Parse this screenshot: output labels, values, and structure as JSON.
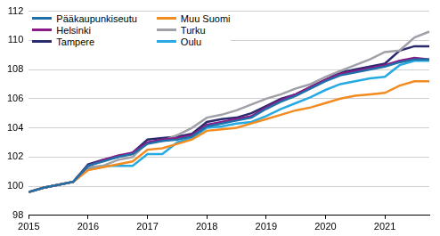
{
  "chart_data": {
    "type": "line",
    "categories": [
      "2015",
      null,
      null,
      null,
      "2016",
      null,
      null,
      null,
      "2017",
      null,
      null,
      null,
      "2018",
      null,
      null,
      null,
      "2019",
      null,
      null,
      null,
      "2020",
      null,
      null,
      null,
      "2021",
      null,
      null,
      null
    ],
    "series": [
      {
        "name": "Pääkaupunkiseutu",
        "color": "#1f6fa8",
        "values": [
          99.6,
          99.9,
          100.1,
          100.3,
          101.4,
          101.7,
          102.0,
          102.2,
          102.9,
          103.1,
          103.2,
          103.4,
          104.1,
          104.3,
          104.5,
          104.7,
          105.3,
          105.8,
          106.2,
          106.7,
          107.2,
          107.6,
          107.8,
          108.0,
          108.2,
          108.5,
          108.7,
          108.7
        ]
      },
      {
        "name": "Muu Suomi",
        "color": "#f28b20",
        "values": [
          99.6,
          99.9,
          100.1,
          100.3,
          101.1,
          101.3,
          101.5,
          101.7,
          102.5,
          102.6,
          102.9,
          103.2,
          103.8,
          103.9,
          104.0,
          104.3,
          104.6,
          104.9,
          105.2,
          105.4,
          105.7,
          106.0,
          106.2,
          106.3,
          106.4,
          106.9,
          107.2,
          107.2
        ]
      },
      {
        "name": "Helsinki",
        "color": "#8b1a89",
        "values": [
          99.6,
          99.9,
          100.1,
          100.3,
          101.4,
          101.8,
          102.1,
          102.3,
          103.0,
          103.2,
          103.3,
          103.5,
          104.2,
          104.4,
          104.6,
          104.8,
          105.4,
          105.9,
          106.3,
          106.8,
          107.3,
          107.7,
          107.9,
          108.1,
          108.3,
          108.6,
          108.8,
          108.7
        ]
      },
      {
        "name": "Turku",
        "color": "#a0a0a8",
        "values": [
          99.6,
          99.9,
          100.1,
          100.3,
          101.3,
          101.4,
          101.8,
          102.0,
          103.0,
          103.1,
          103.5,
          104.0,
          104.7,
          104.9,
          105.2,
          105.6,
          106.0,
          106.3,
          106.7,
          107.0,
          107.5,
          107.9,
          108.3,
          108.7,
          109.2,
          109.3,
          110.2,
          110.6
        ]
      },
      {
        "name": "Tampere",
        "color": "#2a2a6e",
        "values": [
          99.6,
          99.9,
          100.1,
          100.3,
          101.5,
          101.8,
          102.0,
          102.3,
          103.2,
          103.3,
          103.4,
          103.6,
          104.4,
          104.6,
          104.7,
          105.0,
          105.5,
          106.0,
          106.3,
          106.8,
          107.3,
          107.8,
          108.0,
          108.2,
          108.4,
          109.3,
          109.6,
          109.6
        ]
      },
      {
        "name": "Oulu",
        "color": "#27aae1",
        "values": [
          99.6,
          99.9,
          100.1,
          100.3,
          101.2,
          101.4,
          101.4,
          101.4,
          102.2,
          102.2,
          103.0,
          103.3,
          104.0,
          104.1,
          104.3,
          104.4,
          104.8,
          105.3,
          105.7,
          106.1,
          106.6,
          107.0,
          107.2,
          107.4,
          107.5,
          108.3,
          108.6,
          108.6
        ]
      }
    ],
    "ylim": [
      98,
      112
    ],
    "yticks": [
      98,
      100,
      102,
      104,
      106,
      108,
      110,
      112
    ],
    "grid": true,
    "legend": "upper left"
  }
}
